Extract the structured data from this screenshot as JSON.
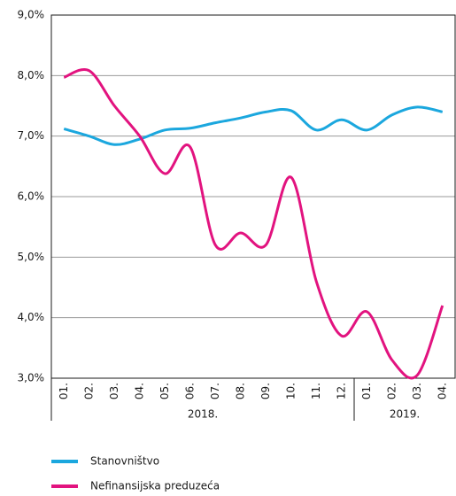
{
  "chart_data": {
    "type": "line",
    "categories": [
      "01.",
      "02.",
      "03.",
      "04.",
      "05.",
      "06.",
      "07.",
      "08.",
      "09.",
      "10.",
      "11.",
      "12.",
      "01.",
      "02.",
      "03.",
      "04."
    ],
    "groups": [
      {
        "label": "2018.",
        "size": 12
      },
      {
        "label": "2019.",
        "size": 4
      }
    ],
    "series": [
      {
        "name": "Stanovništvo",
        "color": "#1ba7de",
        "values": [
          7.12,
          7.0,
          6.86,
          6.95,
          7.1,
          7.13,
          7.22,
          7.3,
          7.4,
          7.42,
          7.1,
          7.27,
          7.1,
          7.35,
          7.48,
          7.4
        ]
      },
      {
        "name": "Nefinansijska preduzeća",
        "color": "#e2137f",
        "values": [
          7.97,
          8.08,
          7.5,
          7.0,
          6.38,
          6.82,
          5.2,
          5.4,
          5.2,
          6.32,
          4.6,
          3.7,
          4.1,
          3.3,
          3.05,
          4.2
        ]
      }
    ],
    "ylim": [
      3,
      9
    ],
    "yticks": [
      {
        "value": 3,
        "label": "3,0%"
      },
      {
        "value": 4,
        "label": "4,0%"
      },
      {
        "value": 5,
        "label": "5,0%"
      },
      {
        "value": 6,
        "label": "6,0%"
      },
      {
        "value": 7,
        "label": "7,0%"
      },
      {
        "value": 8,
        "label": "8,0%"
      },
      {
        "value": 9,
        "label": "9,0%"
      }
    ],
    "grid": true
  }
}
